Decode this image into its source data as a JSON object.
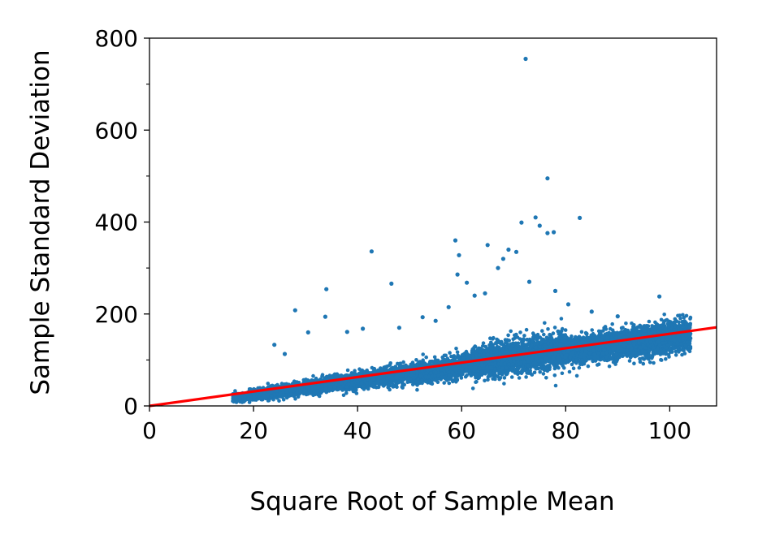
{
  "chart_data": {
    "type": "scatter",
    "xlabel": "Square Root of Sample Mean",
    "ylabel": "Sample Standard Deviation",
    "xlim": [
      0,
      109
    ],
    "ylim": [
      0,
      800
    ],
    "x_ticks": [
      0,
      20,
      40,
      60,
      80,
      100
    ],
    "x_tick_labels": [
      "0",
      "20",
      "40",
      "60",
      "80",
      "100"
    ],
    "y_ticks": [
      0,
      200,
      400,
      600,
      800
    ],
    "y_tick_labels": [
      "0",
      "200",
      "400",
      "600",
      "800"
    ],
    "y_minor_ticks": [
      100,
      300,
      500,
      700
    ],
    "grid": false,
    "legend": "none",
    "point_color": "#1f77b4",
    "fit_line_color": "#ff0000",
    "fit_line": {
      "x": [
        0,
        109
      ],
      "y": [
        0,
        171
      ]
    },
    "scatter_band": {
      "x_range": [
        16,
        104
      ],
      "center_slope": 1.57,
      "description_only_for_density": false
    },
    "outlier_points": [
      {
        "x": 72.3,
        "y": 755
      },
      {
        "x": 76.5,
        "y": 495
      },
      {
        "x": 82.7,
        "y": 409
      },
      {
        "x": 74.2,
        "y": 410
      },
      {
        "x": 71.5,
        "y": 399
      },
      {
        "x": 75.0,
        "y": 392
      },
      {
        "x": 77.7,
        "y": 378
      },
      {
        "x": 76.5,
        "y": 376
      },
      {
        "x": 58.8,
        "y": 360
      },
      {
        "x": 65.0,
        "y": 350
      },
      {
        "x": 69.0,
        "y": 340
      },
      {
        "x": 70.5,
        "y": 335
      },
      {
        "x": 42.7,
        "y": 336
      },
      {
        "x": 59.5,
        "y": 328
      },
      {
        "x": 68.0,
        "y": 320
      },
      {
        "x": 67.0,
        "y": 300
      },
      {
        "x": 46.5,
        "y": 266
      },
      {
        "x": 34.0,
        "y": 254
      },
      {
        "x": 61.0,
        "y": 268
      },
      {
        "x": 59.2,
        "y": 286
      },
      {
        "x": 28.0,
        "y": 208
      },
      {
        "x": 33.8,
        "y": 194
      },
      {
        "x": 52.5,
        "y": 193
      },
      {
        "x": 41.0,
        "y": 168
      },
      {
        "x": 38.0,
        "y": 161
      },
      {
        "x": 30.5,
        "y": 160
      },
      {
        "x": 57.5,
        "y": 215
      },
      {
        "x": 80.5,
        "y": 221
      },
      {
        "x": 98.0,
        "y": 238
      },
      {
        "x": 24.0,
        "y": 133
      },
      {
        "x": 26.0,
        "y": 113
      },
      {
        "x": 62.5,
        "y": 240
      },
      {
        "x": 73.0,
        "y": 270
      },
      {
        "x": 78.0,
        "y": 250
      },
      {
        "x": 64.5,
        "y": 245
      },
      {
        "x": 85.0,
        "y": 205
      },
      {
        "x": 90.0,
        "y": 195
      },
      {
        "x": 48.0,
        "y": 170
      },
      {
        "x": 55.0,
        "y": 185
      }
    ]
  }
}
